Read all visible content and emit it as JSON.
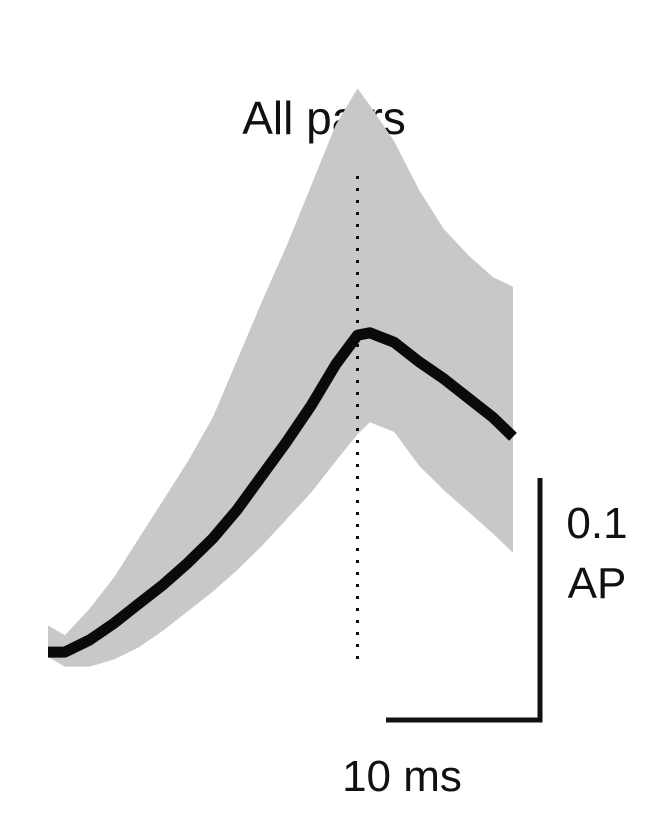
{
  "chart_data": {
    "type": "line",
    "title": "All pairs",
    "xlabel": "",
    "ylabel": "",
    "grid": false,
    "legend": "none",
    "x_unit": "ms",
    "y_unit": "AP",
    "xlim": [
      -20.1,
      10.1
    ],
    "ylim": [
      -0.005,
      0.2
    ],
    "peak_marker_x": 0,
    "scale_bar_x": {
      "value": 10,
      "label": "10 ms"
    },
    "scale_bar_y": {
      "value": 0.1,
      "label_line1": "0.1",
      "label_line2": "AP"
    },
    "colors": {
      "line": "#0a0a0a",
      "band": "#c8c8c8",
      "marker": "#111111"
    },
    "series": [
      {
        "x": [
          -20.1,
          -19,
          -17.4,
          -15.8,
          -14.2,
          -12.6,
          -11,
          -9.4,
          -7.8,
          -6.2,
          -4.6,
          -3,
          -1.4,
          0,
          0.8,
          2.4,
          4,
          5.6,
          7.2,
          8.8,
          10.1
        ],
        "mean": [
          0.009,
          0.009,
          0.014,
          0.021,
          0.029,
          0.037,
          0.046,
          0.056,
          0.068,
          0.082,
          0.096,
          0.111,
          0.128,
          0.14,
          0.141,
          0.137,
          0.129,
          0.122,
          0.114,
          0.106,
          0.098
        ],
        "lower": [
          0.007,
          0.003,
          0.003,
          0.006,
          0.011,
          0.018,
          0.026,
          0.034,
          0.043,
          0.053,
          0.064,
          0.075,
          0.088,
          0.099,
          0.104,
          0.1,
          0.086,
          0.076,
          0.067,
          0.058,
          0.05
        ],
        "upper": [
          0.02,
          0.016,
          0.027,
          0.04,
          0.056,
          0.072,
          0.088,
          0.106,
          0.13,
          0.154,
          0.177,
          0.202,
          0.227,
          0.242,
          0.235,
          0.22,
          0.2,
          0.184,
          0.173,
          0.164,
          0.16
        ]
      }
    ]
  }
}
